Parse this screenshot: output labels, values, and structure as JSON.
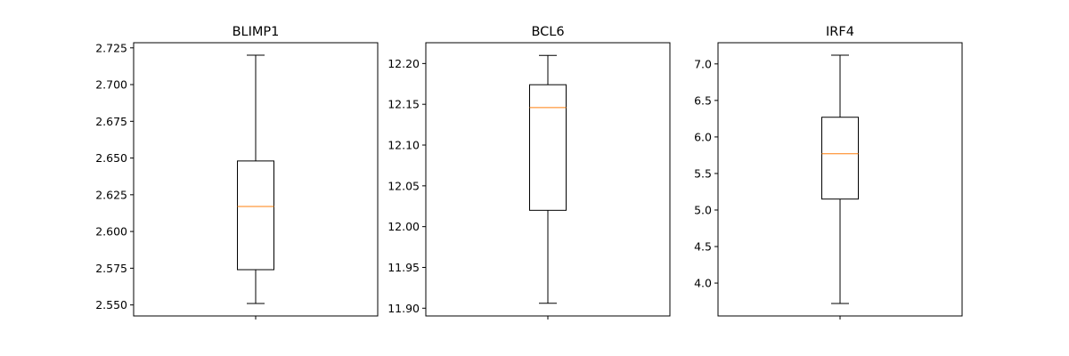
{
  "figure": {
    "background": "#ffffff"
  },
  "colors": {
    "box": "#000000",
    "median": "#ff7f0e",
    "axes": "#000000"
  },
  "chart_data": [
    {
      "type": "boxplot",
      "title": "BLIMP1",
      "xlabel": "",
      "ylabel": "",
      "grid": false,
      "ylim": [
        2.5425,
        2.7285
      ],
      "yticks": [
        2.55,
        2.575,
        2.6,
        2.625,
        2.65,
        2.675,
        2.7,
        2.725
      ],
      "ytick_labels": [
        "2.550",
        "2.575",
        "2.600",
        "2.625",
        "2.650",
        "2.675",
        "2.700",
        "2.725"
      ],
      "box": {
        "whislo": 2.551,
        "q1": 2.574,
        "med": 2.617,
        "q3": 2.648,
        "whishi": 2.72
      }
    },
    {
      "type": "boxplot",
      "title": "BCL6",
      "xlabel": "",
      "ylabel": "",
      "grid": false,
      "ylim": [
        11.8905,
        12.2255
      ],
      "yticks": [
        11.9,
        11.95,
        12.0,
        12.05,
        12.1,
        12.15,
        12.2
      ],
      "ytick_labels": [
        "11.90",
        "11.95",
        "12.00",
        "12.05",
        "12.10",
        "12.15",
        "12.20"
      ],
      "box": {
        "whislo": 11.906,
        "q1": 12.02,
        "med": 12.146,
        "q3": 12.174,
        "whishi": 12.21
      }
    },
    {
      "type": "boxplot",
      "title": "IRF4",
      "xlabel": "",
      "ylabel": "",
      "grid": false,
      "ylim": [
        3.55,
        7.29
      ],
      "yticks": [
        4.0,
        4.5,
        5.0,
        5.5,
        6.0,
        6.5,
        7.0
      ],
      "ytick_labels": [
        "4.0",
        "4.5",
        "5.0",
        "5.5",
        "6.0",
        "6.5",
        "7.0"
      ],
      "box": {
        "whislo": 3.72,
        "q1": 5.15,
        "med": 5.77,
        "q3": 6.27,
        "whishi": 7.12
      }
    }
  ]
}
